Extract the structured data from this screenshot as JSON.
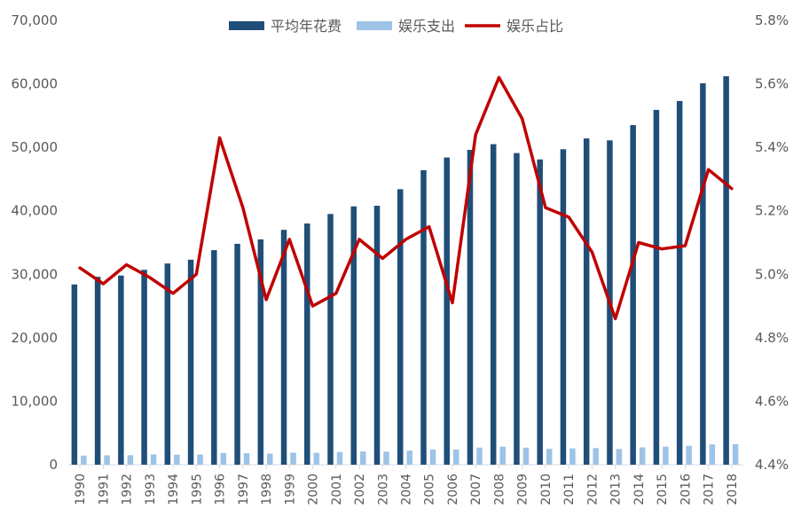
{
  "chart_data": {
    "type": "bar",
    "x": [
      "1990",
      "1991",
      "1992",
      "1993",
      "1994",
      "1995",
      "1996",
      "1997",
      "1998",
      "1999",
      "2000",
      "2001",
      "2002",
      "2003",
      "2004",
      "2005",
      "2006",
      "2007",
      "2008",
      "2009",
      "2010",
      "2011",
      "2012",
      "2013",
      "2014",
      "2015",
      "2016",
      "2017",
      "2018"
    ],
    "series": [
      {
        "name": "平均年花费",
        "type": "bar",
        "axis": "left",
        "color": "#1f4e79",
        "values": [
          28400,
          29600,
          29800,
          30700,
          31700,
          32300,
          33800,
          34800,
          35500,
          37000,
          38000,
          39500,
          40700,
          40800,
          43400,
          46400,
          48400,
          49600,
          50500,
          49100,
          48100,
          49700,
          51400,
          51100,
          53500,
          55900,
          57300,
          60100,
          61200
        ]
      },
      {
        "name": "娱乐支出",
        "type": "bar",
        "axis": "left",
        "color": "#9dc3e6",
        "values": [
          1430,
          1470,
          1500,
          1630,
          1570,
          1610,
          1830,
          1810,
          1750,
          1890,
          1860,
          2000,
          2080,
          2060,
          2220,
          2390,
          2380,
          2700,
          2840,
          2690,
          2500,
          2570,
          2610,
          2480,
          2730,
          2840,
          2980,
          3200,
          3230
        ]
      },
      {
        "name": "娱乐占比",
        "type": "line",
        "axis": "right",
        "color": "#c00000",
        "values": [
          5.02,
          4.97,
          5.03,
          4.99,
          4.94,
          5.0,
          5.43,
          5.21,
          4.92,
          5.11,
          4.9,
          4.94,
          5.11,
          5.05,
          5.11,
          5.15,
          4.91,
          5.44,
          5.62,
          5.49,
          5.21,
          5.18,
          5.07,
          4.86,
          5.1,
          5.08,
          5.09,
          5.33,
          5.27
        ]
      }
    ],
    "y_left": {
      "min": 0,
      "max": 70000,
      "ticks": [
        0,
        10000,
        20000,
        30000,
        40000,
        50000,
        60000,
        70000
      ],
      "tick_labels": [
        "0",
        "10,000",
        "20,000",
        "30,000",
        "40,000",
        "50,000",
        "60,000",
        "70,000"
      ]
    },
    "y_right": {
      "min": 4.4,
      "max": 5.8,
      "ticks": [
        4.4,
        4.6,
        4.8,
        5.0,
        5.2,
        5.4,
        5.6,
        5.8
      ],
      "tick_labels": [
        "4.4%",
        "4.6%",
        "4.8%",
        "5.0%",
        "5.2%",
        "5.4%",
        "5.6%",
        "5.8%"
      ]
    },
    "legend_position": "top",
    "grid": false
  }
}
